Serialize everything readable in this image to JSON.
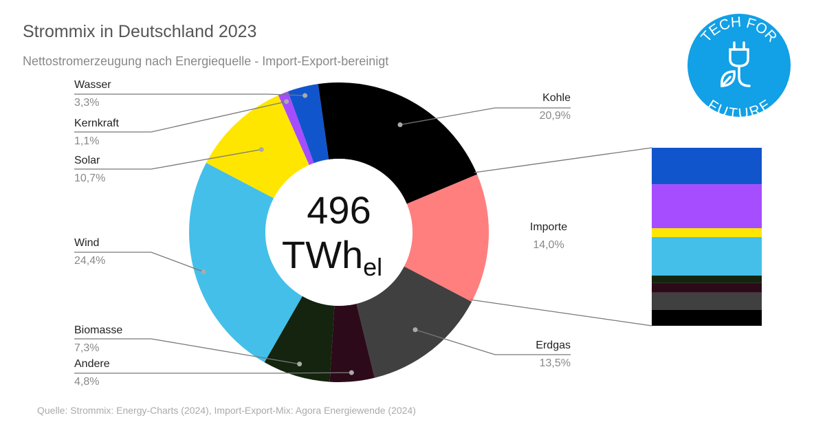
{
  "chart_data": [
    {
      "type": "pie",
      "title": "Strommix in Deutschland 2023",
      "subtitle": "Nettostromerzeugung nach Energiequelle - Import-Export-bereinigt",
      "donut": true,
      "categories": [
        "Kohle",
        "Importe",
        "Erdgas",
        "Andere",
        "Biomasse",
        "Wind",
        "Solar",
        "Kernkraft",
        "Wasser"
      ],
      "values": [
        20.9,
        14.0,
        13.5,
        4.8,
        7.3,
        24.4,
        10.7,
        1.1,
        3.3
      ],
      "value_labels": [
        "20,9%",
        "14,0%",
        "13,5%",
        "4,8%",
        "7,3%",
        "24,4%",
        "10,7%",
        "1,1%",
        "3,3%"
      ],
      "colors": [
        "#000000",
        "#ff7f7f",
        "#404040",
        "#2d0a1a",
        "#14240e",
        "#44bfea",
        "#ffe600",
        "#a64dff",
        "#1155cc"
      ],
      "center_value": 496,
      "center_unit": "TWh",
      "center_unit_sub": "el"
    },
    {
      "type": "stacked-bar",
      "values": [
        20.5,
        24.7,
        5.0,
        21.6,
        4.2,
        5.4,
        9.7,
        8.9
      ],
      "colors": [
        "#1155cc",
        "#a64dff",
        "#ffe600",
        "#44bfea",
        "#14240e",
        "#2d0a1a",
        "#404040",
        "#000000"
      ]
    }
  ],
  "source": "Quelle: Strommix: Energy-Charts (2024), Import-Export-Mix: Agora Energiewende (2024)",
  "logo": {
    "top": "TECH FOR",
    "bottom": "FUTURE"
  }
}
